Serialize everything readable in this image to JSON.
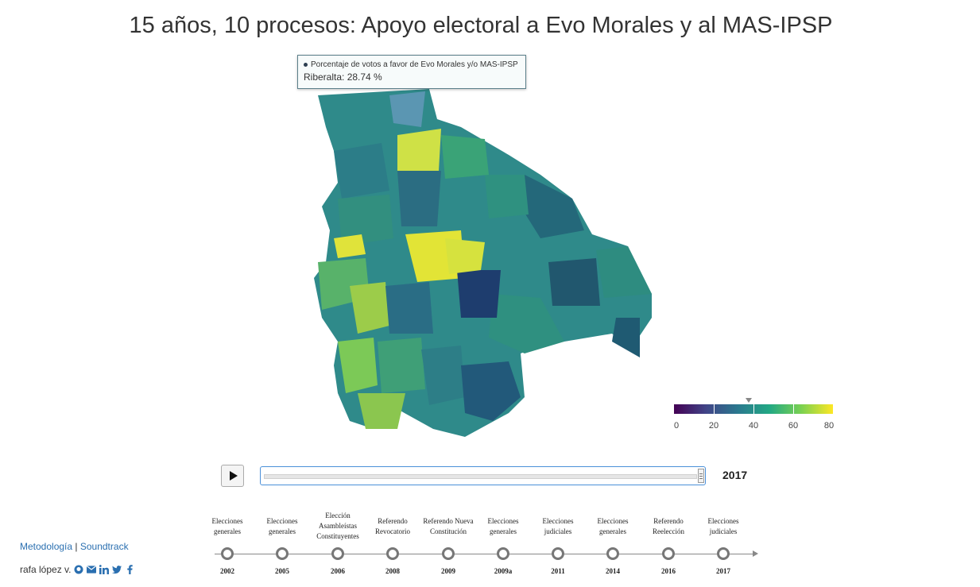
{
  "page": {
    "title": "15 años, 10 procesos: Apoyo electoral a Evo Morales y al MAS-IPSP"
  },
  "tooltip": {
    "series_label": "Porcentaje de votos a favor de Evo Morales y/o MAS-IPSP",
    "value_text": "Riberalta: 28.74 %"
  },
  "legend": {
    "ticks": [
      "0",
      "20",
      "40",
      "60",
      "80"
    ],
    "colors": [
      "#440154",
      "#414487",
      "#2a788e",
      "#22a884",
      "#7ad151",
      "#fde725"
    ],
    "marker_value": 37
  },
  "player": {
    "current_year": "2017",
    "progress": 1.0
  },
  "timeline": {
    "events": [
      {
        "label": "Elecciones generales",
        "year": "2002"
      },
      {
        "label": "Elecciones generales",
        "year": "2005"
      },
      {
        "label": "Elección Asambleístas Constituyentes",
        "year": "2006"
      },
      {
        "label": "Referendo Revocatorio",
        "year": "2008"
      },
      {
        "label": "Referendo Nueva Constitución",
        "year": "2009"
      },
      {
        "label": "Elecciones generales",
        "year": "2009a"
      },
      {
        "label": "Elecciones judiciales",
        "year": "2011"
      },
      {
        "label": "Elecciones generales",
        "year": "2014"
      },
      {
        "label": "Referendo Reelección",
        "year": "2016"
      },
      {
        "label": "Elecciones judiciales",
        "year": "2017"
      }
    ]
  },
  "footer": {
    "methodology": "Metodología",
    "separator": "|",
    "soundtrack": "Soundtrack",
    "author": "rafa lópez v.",
    "icons": [
      "github-icon",
      "mail-icon",
      "linkedin-icon",
      "twitter-icon",
      "facebook-icon"
    ]
  }
}
